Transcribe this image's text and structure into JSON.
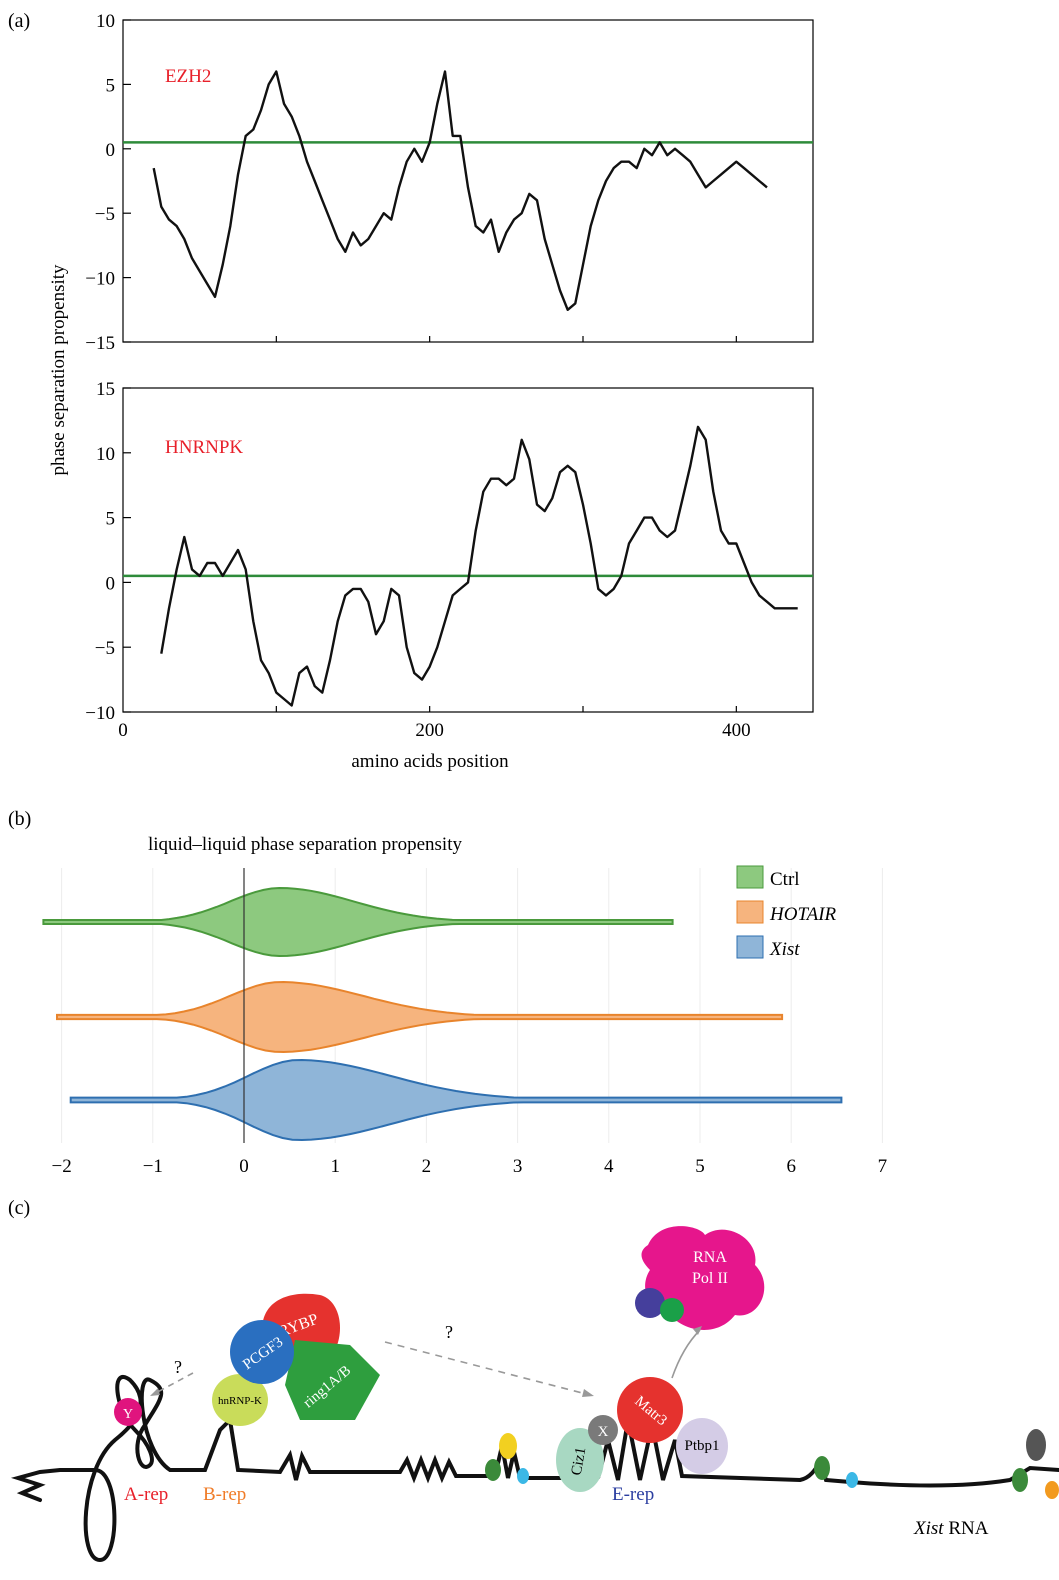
{
  "panels": {
    "a": "(a)",
    "b": "(b)",
    "c": "(c)"
  },
  "panel_a": {
    "ylabel": "phase separation propensity",
    "xlabel": "amino acids position",
    "top_label": "EZH2",
    "bottom_label": "HNRNPK"
  },
  "panel_b": {
    "title": "liquid–liquid phase separation propensity",
    "legend": [
      "Ctrl",
      "HOTAIR",
      "Xist"
    ]
  },
  "panel_c": {
    "labels": {
      "y": "Y",
      "hnrnpk": "hnRNP-K",
      "pcgf3": "PCGF3",
      "rybp": "RYBP",
      "ring1": "ring1A/B",
      "q1": "?",
      "q2": "?",
      "rna_pol_line1": "RNA",
      "rna_pol_line2": "Pol II",
      "matr3": "Matr3",
      "x": "X",
      "ptbp1": "Ptbp1",
      "ciz1": "Ciz1",
      "arep": "A-rep",
      "brep": "B-rep",
      "erep": "E-rep",
      "xist_italic": "Xist",
      "xist_rna": "RNA"
    }
  },
  "chart_data": [
    {
      "type": "line",
      "title": "EZH2",
      "xlabel": "",
      "ylabel": "phase separation propensity",
      "xlim": [
        0,
        450
      ],
      "ylim": [
        -15,
        10
      ],
      "yticks": [
        -15,
        -10,
        -5,
        0,
        5,
        10
      ],
      "threshold": 0.5,
      "series": [
        {
          "x": [
            20,
            25,
            30,
            35,
            40,
            45,
            50,
            55,
            60,
            65,
            70,
            75,
            80,
            85,
            90,
            95,
            100,
            105,
            110,
            115,
            120,
            125,
            130,
            135,
            140,
            145,
            150,
            155,
            160,
            165,
            170,
            175,
            180,
            185,
            190,
            195,
            200,
            205,
            210,
            215,
            220,
            225,
            230,
            235,
            240,
            245,
            250,
            255,
            260,
            265,
            270,
            275,
            280,
            285,
            290,
            295,
            300,
            305,
            310,
            315,
            320,
            325,
            330,
            335,
            340,
            345,
            350,
            355,
            360,
            365,
            370,
            375,
            380,
            385,
            390,
            395,
            400,
            405,
            410,
            415,
            420
          ],
          "y": [
            -1.5,
            -4.5,
            -5.5,
            -6,
            -7,
            -8.5,
            -9.5,
            -10.5,
            -11.5,
            -9,
            -6,
            -2,
            1,
            1.5,
            3,
            5,
            6,
            3.5,
            2.5,
            1,
            -1,
            -2.5,
            -4,
            -5.5,
            -7,
            -8,
            -6.5,
            -7.5,
            -7,
            -6,
            -5,
            -5.5,
            -3,
            -1,
            0,
            -1,
            0.5,
            3.5,
            6,
            1,
            1,
            -3,
            -6,
            -6.5,
            -5.5,
            -8,
            -6.5,
            -5.5,
            -5,
            -3.5,
            -4,
            -7,
            -9,
            -11,
            -12.5,
            -12,
            -9,
            -6,
            -4,
            -2.5,
            -1.5,
            -1,
            -1,
            -1.5,
            0,
            -0.5,
            0.5,
            -0.5,
            0,
            -0.5,
            -1,
            -2,
            -3,
            -2.5,
            -2,
            -1.5,
            -1,
            -1.5,
            -2,
            -2.5,
            -3
          ]
        }
      ]
    },
    {
      "type": "line",
      "title": "HNRNPK",
      "xlabel": "amino acids position",
      "ylabel": "phase separation propensity",
      "xlim": [
        0,
        450
      ],
      "ylim": [
        -10,
        15
      ],
      "yticks": [
        -10,
        -5,
        0,
        5,
        10,
        15
      ],
      "xticks": [
        0,
        200,
        400
      ],
      "threshold": 0.5,
      "series": [
        {
          "x": [
            25,
            30,
            35,
            40,
            45,
            50,
            55,
            60,
            65,
            70,
            75,
            80,
            85,
            90,
            95,
            100,
            105,
            110,
            115,
            120,
            125,
            130,
            135,
            140,
            145,
            150,
            155,
            160,
            165,
            170,
            175,
            180,
            185,
            190,
            195,
            200,
            205,
            210,
            215,
            220,
            225,
            230,
            235,
            240,
            245,
            250,
            255,
            260,
            265,
            270,
            275,
            280,
            285,
            290,
            295,
            300,
            305,
            310,
            315,
            320,
            325,
            330,
            335,
            340,
            345,
            350,
            355,
            360,
            365,
            370,
            375,
            380,
            385,
            390,
            395,
            400,
            405,
            410,
            415,
            420,
            425,
            430,
            435,
            440
          ],
          "y": [
            -5.5,
            -2,
            1,
            3.5,
            1,
            0.5,
            1.5,
            1.5,
            0.5,
            1.5,
            2.5,
            1,
            -3,
            -6,
            -7,
            -8.5,
            -9,
            -9.5,
            -7,
            -6.5,
            -8,
            -8.5,
            -6,
            -3,
            -1,
            -0.5,
            -0.5,
            -1.5,
            -4,
            -3,
            -0.5,
            -1,
            -5,
            -7,
            -7.5,
            -6.5,
            -5,
            -3,
            -1,
            -0.5,
            0,
            4,
            7,
            8,
            8,
            7.5,
            8,
            11,
            9.5,
            6,
            5.5,
            6.5,
            8.5,
            9,
            8.5,
            6,
            3,
            -0.5,
            -1,
            -0.5,
            0.5,
            3,
            4,
            5,
            5,
            4,
            3.5,
            4,
            6.5,
            9,
            12,
            11,
            7,
            4,
            3,
            3,
            1.5,
            0,
            -1,
            -1.5,
            -2,
            -2,
            -2,
            -2
          ]
        }
      ]
    },
    {
      "type": "violin",
      "title": "liquid–liquid phase separation propensity",
      "xlabel": "",
      "ylabel": "",
      "xlim": [
        -2.2,
        7
      ],
      "xticks": [
        -2,
        -1,
        0,
        1,
        2,
        3,
        4,
        5,
        6,
        7
      ],
      "legend_position": "top-right",
      "series": [
        {
          "name": "Ctrl",
          "color": "#8dc97f",
          "stroke": "#4a9a3c",
          "min": -2.2,
          "max": 4.7,
          "peak": 0.4
        },
        {
          "name": "HOTAIR",
          "color": "#f6b47e",
          "stroke": "#e8842c",
          "min": -2.05,
          "max": 5.9,
          "peak": 0.4
        },
        {
          "name": "Xist",
          "color": "#8fb5d8",
          "stroke": "#2e6fb0",
          "min": -1.9,
          "max": 6.55,
          "peak": 0.6
        }
      ]
    }
  ],
  "colors": {
    "threshold_line": "#2e8b3a",
    "annotation_red": "#e8202a",
    "erep_blue": "#2b3ea0",
    "brep_orange": "#f07c28"
  }
}
